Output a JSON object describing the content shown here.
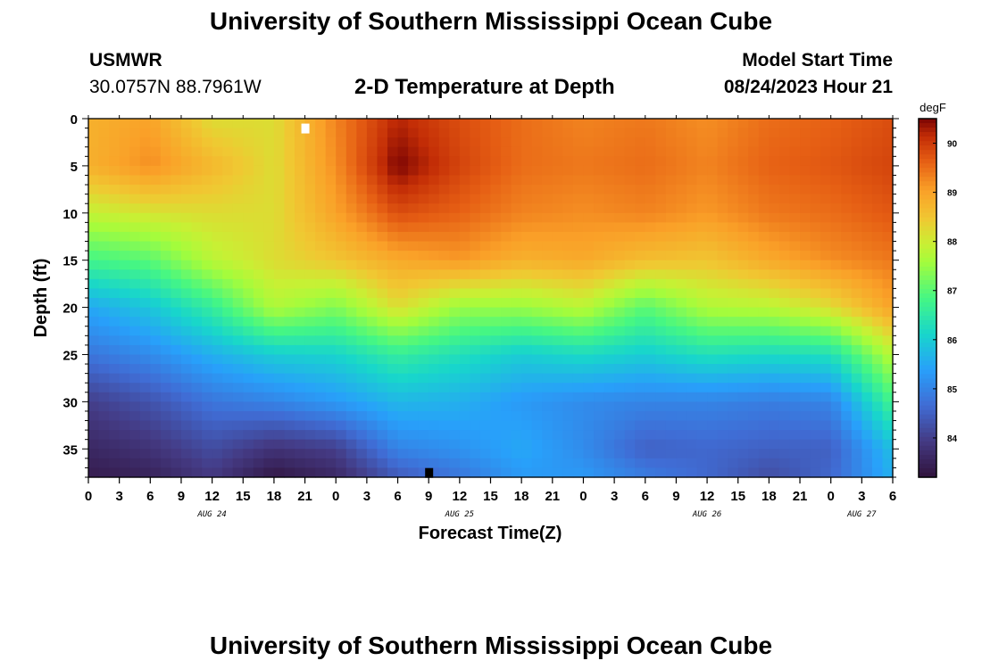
{
  "header": {
    "title": "University of Southern Mississippi Ocean Cube",
    "station": "USMWR",
    "coordinates": "30.0757N  88.7961W",
    "plot_title": "2-D Temperature at Depth",
    "model_start_label": "Model Start Time",
    "model_start_value": "08/24/2023 Hour 21"
  },
  "footer": {
    "title": "University of Southern Mississippi Ocean Cube"
  },
  "chart_data": {
    "type": "heatmap",
    "title": "2-D Temperature at Depth",
    "xlabel": "Forecast Time(Z)",
    "ylabel": "Depth (ft)",
    "x_hours_range": [
      0,
      78
    ],
    "x_ticks": [
      "0",
      "3",
      "6",
      "9",
      "12",
      "15",
      "18",
      "21",
      "0",
      "3",
      "6",
      "9",
      "12",
      "15",
      "18",
      "21",
      "0",
      "3",
      "6",
      "9",
      "12",
      "15",
      "18",
      "21",
      "0",
      "3",
      "6"
    ],
    "date_labels": [
      {
        "label": "AUG 24",
        "hour": 12
      },
      {
        "label": "AUG 25",
        "hour": 36
      },
      {
        "label": "AUG 26",
        "hour": 60
      },
      {
        "label": "AUG 27",
        "hour": 75
      }
    ],
    "ylim": [
      0,
      38
    ],
    "y_ticks": [
      "0",
      "5",
      "10",
      "15",
      "20",
      "25",
      "30",
      "35"
    ],
    "y_tick_values": [
      0,
      5,
      10,
      15,
      20,
      25,
      30,
      35
    ],
    "colorbar": {
      "unit": "degF",
      "range": [
        83.2,
        90.5
      ],
      "ticks": [
        "84",
        "85",
        "86",
        "87",
        "88",
        "89",
        "90"
      ],
      "tick_values": [
        84,
        85,
        86,
        87,
        88,
        89,
        90
      ]
    },
    "grid": {
      "x_hours": [
        0,
        6,
        12,
        18,
        24,
        30,
        36,
        42,
        48,
        54,
        60,
        66,
        72,
        78
      ],
      "y_depths": [
        0,
        5,
        10,
        15,
        20,
        25,
        30,
        35,
        38
      ],
      "values": [
        [
          88.8,
          89.0,
          88.2,
          88.2,
          89.3,
          90.2,
          89.8,
          89.5,
          89.3,
          89.4,
          89.2,
          89.5,
          89.6,
          89.8
        ],
        [
          88.8,
          89.2,
          88.7,
          88.2,
          89.2,
          90.5,
          89.9,
          89.5,
          89.4,
          89.5,
          89.3,
          89.6,
          89.7,
          89.9
        ],
        [
          87.9,
          88.1,
          88.2,
          88.2,
          89.0,
          89.8,
          89.6,
          89.3,
          89.2,
          89.3,
          89.1,
          89.4,
          89.5,
          89.7
        ],
        [
          86.8,
          87.0,
          87.8,
          88.2,
          88.5,
          88.9,
          89.1,
          88.8,
          88.9,
          88.6,
          88.5,
          88.9,
          89.2,
          89.4
        ],
        [
          85.5,
          85.9,
          86.6,
          87.7,
          87.3,
          88.2,
          87.5,
          87.5,
          87.8,
          87.0,
          87.7,
          87.8,
          88.2,
          89.0
        ],
        [
          84.8,
          85.1,
          85.6,
          86.0,
          86.1,
          86.6,
          86.3,
          86.0,
          86.2,
          86.0,
          86.3,
          86.2,
          86.3,
          87.8
        ],
        [
          84.0,
          84.3,
          84.8,
          85.0,
          85.3,
          85.7,
          85.6,
          85.3,
          85.1,
          85.0,
          85.0,
          84.9,
          85.0,
          86.8
        ],
        [
          83.6,
          83.8,
          84.2,
          83.8,
          84.0,
          85.0,
          85.2,
          85.5,
          85.1,
          84.5,
          84.6,
          84.5,
          84.5,
          85.8
        ],
        [
          83.4,
          83.5,
          83.9,
          83.3,
          83.6,
          84.4,
          84.8,
          85.3,
          85.3,
          84.9,
          84.6,
          84.2,
          84.6,
          85.6
        ]
      ]
    },
    "markers": [
      {
        "name": "max-temperature-marker",
        "hour": 21,
        "depth": 1,
        "color": "#ffffff"
      },
      {
        "name": "min-temperature-marker",
        "hour": 33,
        "depth": 37.5,
        "color": "#000000"
      }
    ]
  }
}
